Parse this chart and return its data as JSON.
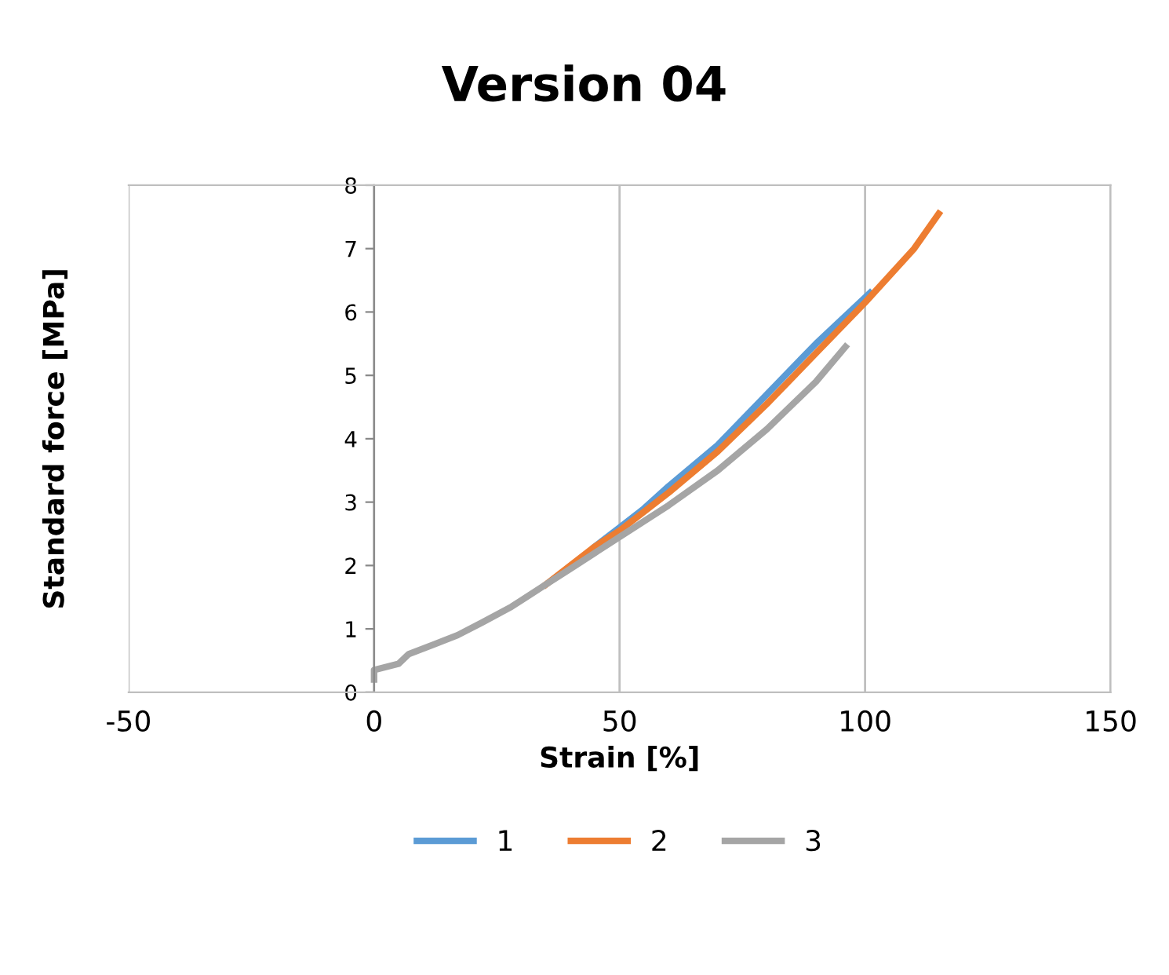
{
  "chart_data": {
    "type": "line",
    "title": "Version 04",
    "xlabel": "Strain [%]",
    "ylabel": "Standard force [MPa]",
    "xlim": [
      -50,
      150
    ],
    "xticks": [
      -50,
      0,
      50,
      100,
      150
    ],
    "ylim": [
      0,
      8
    ],
    "yticks": [
      0,
      1,
      2,
      3,
      4,
      5,
      6,
      7,
      8
    ],
    "grid": "x",
    "legend": "bottom",
    "marker": "none",
    "line_style": "solid",
    "series": [
      {
        "name": "1",
        "color": "#5b9bd5",
        "x": [
          45,
          50,
          55,
          60,
          70,
          80,
          90,
          101
        ],
        "values": [
          2.3,
          2.6,
          2.9,
          3.25,
          3.9,
          4.7,
          5.5,
          6.3
        ]
      },
      {
        "name": "2",
        "color": "#ed7d31",
        "x": [
          35,
          40,
          45,
          50,
          60,
          70,
          80,
          90,
          100,
          110,
          115
        ],
        "values": [
          1.7,
          2.0,
          2.3,
          2.55,
          3.15,
          3.8,
          4.55,
          5.35,
          6.15,
          7.0,
          7.55
        ]
      },
      {
        "name": "3",
        "color": "#a5a5a5",
        "x": [
          0,
          0,
          5,
          7,
          12,
          17,
          22,
          28,
          35,
          40,
          45,
          50,
          60,
          70,
          80,
          90,
          96
        ],
        "values": [
          0.2,
          0.35,
          0.45,
          0.6,
          0.75,
          0.9,
          1.1,
          1.35,
          1.7,
          1.95,
          2.2,
          2.45,
          2.95,
          3.5,
          4.15,
          4.9,
          5.45
        ]
      }
    ]
  }
}
